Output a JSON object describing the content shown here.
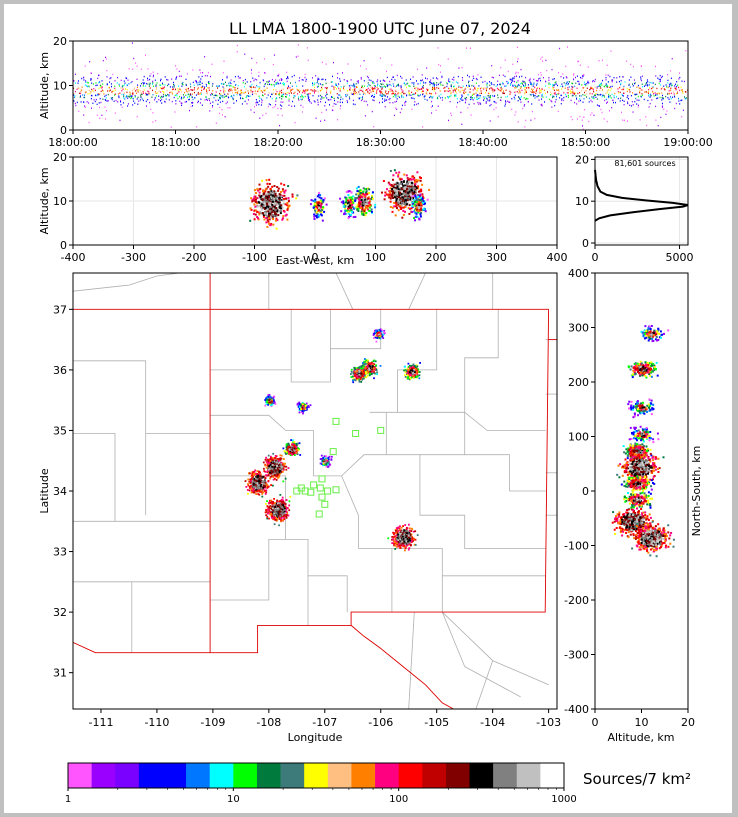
{
  "title": "LL LMA 1800-1900 UTC June 07, 2024",
  "colors": {
    "frame": "#c0c0c0",
    "state_border": "#dd0000",
    "county_lines": "#b0b0b0",
    "stations": "#66ee44",
    "density_scale": [
      "#ff55ff",
      "#9900ff",
      "#7a00ff",
      "#0000ff",
      "#0000ff",
      "#0077ff",
      "#00ffff",
      "#00ff00",
      "#007a3d",
      "#3d7a7a",
      "#ffff00",
      "#ffbf80",
      "#ff7f00",
      "#ff0080",
      "#ff0000",
      "#c00000",
      "#800000",
      "#000000",
      "#808080",
      "#c0c0c0",
      "#ffffff"
    ]
  },
  "chart_data": [
    {
      "name": "time-height",
      "type": "heatmap",
      "ylabel": "Altitude, km",
      "ylim": [
        0,
        20
      ],
      "yticks": [
        "0",
        "10",
        "20"
      ],
      "xticks": [
        "18:00:00",
        "18:10:00",
        "18:20:00",
        "18:30:00",
        "18:40:00",
        "18:50:00",
        "19:00:00"
      ],
      "band_center_km": 9,
      "band_core_km": [
        6,
        13
      ]
    },
    {
      "name": "east-west-height",
      "type": "heatmap",
      "xlabel": "East-West, km",
      "ylabel": "Altitude, km",
      "xlim": [
        -400,
        400
      ],
      "ylim": [
        0,
        20
      ],
      "xticks": [
        "-400",
        "-300",
        "-200",
        "-100",
        "0",
        "100",
        "200",
        "300",
        "400"
      ],
      "yticks": [
        "0",
        "10",
        "20"
      ],
      "clusters": [
        {
          "x": -75,
          "y": 9.5,
          "intensity": "high"
        },
        {
          "x": 5,
          "y": 9,
          "intensity": "low"
        },
        {
          "x": 55,
          "y": 9.5,
          "intensity": "low"
        },
        {
          "x": 80,
          "y": 10,
          "intensity": "medium"
        },
        {
          "x": 147,
          "y": 12,
          "intensity": "high"
        },
        {
          "x": 170,
          "y": 9,
          "intensity": "low"
        }
      ]
    },
    {
      "name": "altitude-histogram",
      "type": "line",
      "annotation": "81,601 sources",
      "xlim": [
        0,
        5500
      ],
      "ylim": [
        0,
        20
      ],
      "xticks": [
        "0",
        "5000"
      ],
      "yticks": [
        "0",
        "10",
        "20"
      ],
      "points": [
        [
          0,
          5.3
        ],
        [
          250,
          5.9
        ],
        [
          900,
          6.6
        ],
        [
          2300,
          7.4
        ],
        [
          3800,
          8.1
        ],
        [
          5200,
          8.7
        ],
        [
          5500,
          9.1
        ],
        [
          4600,
          9.6
        ],
        [
          3000,
          10.2
        ],
        [
          1600,
          10.8
        ],
        [
          700,
          11.5
        ],
        [
          320,
          12.3
        ],
        [
          150,
          13.6
        ],
        [
          60,
          15.2
        ],
        [
          0,
          17.5
        ]
      ]
    },
    {
      "name": "plan-view",
      "type": "heatmap",
      "xlabel": "Longitude",
      "ylabel": "Latitude",
      "xlim": [
        -111.5,
        -102.85
      ],
      "ylim": [
        30.4,
        37.6
      ],
      "xticks": [
        "-111",
        "-110",
        "-109",
        "-108",
        "-107",
        "-106",
        "-105",
        "-104",
        "-103"
      ],
      "yticks": [
        "31",
        "32",
        "33",
        "34",
        "35",
        "36",
        "37"
      ],
      "clusters": [
        {
          "lon": -107.9,
          "lat": 34.4,
          "intensity": "high"
        },
        {
          "lon": -108.2,
          "lat": 34.15,
          "intensity": "high"
        },
        {
          "lon": -107.85,
          "lat": 33.7,
          "intensity": "high"
        },
        {
          "lon": -107.6,
          "lat": 34.7,
          "intensity": "medium"
        },
        {
          "lon": -107.4,
          "lat": 35.4,
          "intensity": "low"
        },
        {
          "lon": -108.0,
          "lat": 35.5,
          "intensity": "low"
        },
        {
          "lon": -107.0,
          "lat": 34.5,
          "intensity": "low"
        },
        {
          "lon": -106.2,
          "lat": 36.05,
          "intensity": "medium"
        },
        {
          "lon": -106.4,
          "lat": 35.95,
          "intensity": "medium"
        },
        {
          "lon": -105.45,
          "lat": 35.98,
          "intensity": "medium"
        },
        {
          "lon": -105.6,
          "lat": 33.25,
          "intensity": "high"
        },
        {
          "lon": -106.05,
          "lat": 36.6,
          "intensity": "low"
        }
      ],
      "stations": [
        [
          -106.8,
          35.15
        ],
        [
          -106.45,
          34.95
        ],
        [
          -106.0,
          35.0
        ],
        [
          -106.85,
          34.65
        ],
        [
          -107.2,
          34.1
        ],
        [
          -107.35,
          34.0
        ],
        [
          -107.25,
          33.98
        ],
        [
          -107.05,
          34.2
        ],
        [
          -107.08,
          34.05
        ],
        [
          -107.05,
          33.9
        ],
        [
          -107.0,
          33.78
        ],
        [
          -107.1,
          33.62
        ],
        [
          -106.95,
          34.0
        ],
        [
          -106.8,
          34.02
        ],
        [
          -107.5,
          34.0
        ],
        [
          -107.42,
          34.05
        ]
      ]
    },
    {
      "name": "north-south-height",
      "type": "heatmap",
      "xlabel": "Altitude, km",
      "ylabel": "North-South, km",
      "xlim": [
        0,
        20
      ],
      "ylim": [
        -400,
        400
      ],
      "xticks": [
        "0",
        "10",
        "20"
      ],
      "yticks": [
        "-400",
        "-300",
        "-200",
        "-100",
        "0",
        "100",
        "200",
        "300",
        "400"
      ],
      "clusters": [
        {
          "y": 225,
          "x": 10,
          "intensity": "medium"
        },
        {
          "y": 155,
          "x": 10,
          "intensity": "low"
        },
        {
          "y": 105,
          "x": 10,
          "intensity": "low"
        },
        {
          "y": 75,
          "x": 9,
          "intensity": "medium"
        },
        {
          "y": 45,
          "x": 9.5,
          "intensity": "high"
        },
        {
          "y": 15,
          "x": 9,
          "intensity": "medium"
        },
        {
          "y": -15,
          "x": 9,
          "intensity": "medium"
        },
        {
          "y": -55,
          "x": 8,
          "intensity": "high"
        },
        {
          "y": -85,
          "x": 12,
          "intensity": "high"
        },
        {
          "y": 290,
          "x": 12,
          "intensity": "low"
        }
      ]
    },
    {
      "name": "colorbar",
      "type": "bar",
      "label": "Sources/7 km²",
      "scale": "log",
      "range": [
        1,
        1000
      ],
      "ticks": [
        "1",
        "10",
        "100",
        "1000"
      ]
    }
  ]
}
